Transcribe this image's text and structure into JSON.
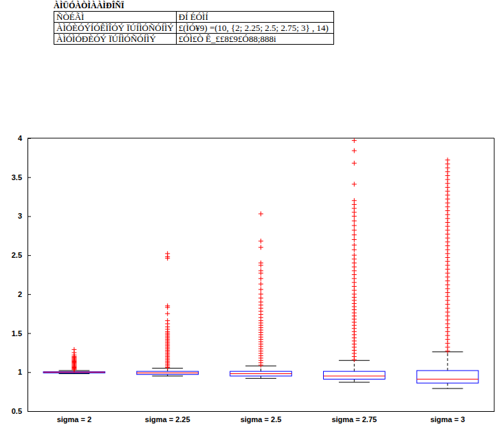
{
  "header_table": {
    "title": "ÀÌÜÓÀÒÌÀÀÌÐÎÑÏ",
    "rows": [
      [
        "ÑÒÉÃÌ",
        "ÐÍ ÉÓÌÍ"
      ],
      [
        "ÀÌÓÈÓÝÍÓÊÌÎÓÝ ÏÚÍÌÓÑÓÍÌÝ",
        "£(ÌÓ¥9) =(10, {2; 2.25; 2.5; 2.75; 3} , 14)"
      ],
      [
        "ÀÌÓÌÓÐÈÓÝ ÏÚÍÌÓÑÓÍÌÝ",
        "£ÓÌ£Ò Ê_££8£9£Ó88;888i"
      ]
    ]
  },
  "chart_data": {
    "type": "box",
    "categories": [
      "sigma = 2",
      "sigma = 2.25",
      "sigma = 2.5",
      "sigma = 2.75",
      "sigma = 3"
    ],
    "ylim": [
      0.5,
      4
    ],
    "yticks": [
      0.5,
      1,
      1.5,
      2,
      2.5,
      3,
      3.5,
      4
    ],
    "color": "#0000ff",
    "median_color": "#ff0000",
    "outlier_color": "#ff0000",
    "marker": "plus",
    "boxes": [
      {
        "whisker_low": 0.98,
        "q1": 0.99,
        "median": 1.0,
        "q3": 1.005,
        "whisker_high": 1.02,
        "outliers": [
          1.03,
          1.04,
          1.05,
          1.06,
          1.07,
          1.08,
          1.09,
          1.1,
          1.11,
          1.12,
          1.13,
          1.14,
          1.15,
          1.16,
          1.17,
          1.18,
          1.19,
          1.2,
          1.22,
          1.25,
          1.29
        ]
      },
      {
        "whisker_low": 0.95,
        "q1": 0.97,
        "median": 0.99,
        "q3": 1.01,
        "whisker_high": 1.05,
        "outliers": [
          1.06,
          1.08,
          1.1,
          1.12,
          1.14,
          1.16,
          1.18,
          1.2,
          1.22,
          1.24,
          1.26,
          1.28,
          1.3,
          1.32,
          1.34,
          1.36,
          1.38,
          1.4,
          1.42,
          1.44,
          1.46,
          1.48,
          1.5,
          1.52,
          1.55,
          1.58,
          1.62,
          1.66,
          1.75,
          1.83,
          1.85,
          2.46,
          2.48,
          2.52
        ]
      },
      {
        "whisker_low": 0.92,
        "q1": 0.95,
        "median": 0.98,
        "q3": 1.01,
        "whisker_high": 1.08,
        "outliers": [
          1.09,
          1.12,
          1.15,
          1.18,
          1.21,
          1.24,
          1.27,
          1.3,
          1.33,
          1.36,
          1.39,
          1.42,
          1.45,
          1.48,
          1.51,
          1.54,
          1.57,
          1.6,
          1.63,
          1.66,
          1.7,
          1.74,
          1.78,
          1.82,
          1.86,
          1.9,
          1.95,
          2.0,
          2.06,
          2.13,
          2.2,
          2.27,
          2.3,
          2.37,
          2.4,
          2.6,
          2.68,
          3.03
        ]
      },
      {
        "whisker_low": 0.87,
        "q1": 0.91,
        "median": 0.95,
        "q3": 1.01,
        "whisker_high": 1.15,
        "outliers": [
          1.16,
          1.2,
          1.24,
          1.28,
          1.32,
          1.36,
          1.4,
          1.44,
          1.48,
          1.52,
          1.56,
          1.6,
          1.64,
          1.68,
          1.72,
          1.76,
          1.8,
          1.84,
          1.88,
          1.92,
          1.96,
          2.0,
          2.05,
          2.1,
          2.15,
          2.2,
          2.25,
          2.3,
          2.35,
          2.4,
          2.45,
          2.5,
          2.57,
          2.63,
          2.7,
          2.76,
          2.82,
          2.88,
          2.94,
          3.0,
          3.05,
          3.1,
          3.15,
          3.2,
          3.41,
          3.68,
          3.84,
          3.97
        ]
      },
      {
        "whisker_low": 0.79,
        "q1": 0.86,
        "median": 0.91,
        "q3": 1.02,
        "whisker_high": 1.26,
        "outliers": [
          1.27,
          1.32,
          1.37,
          1.42,
          1.47,
          1.52,
          1.57,
          1.62,
          1.67,
          1.72,
          1.77,
          1.82,
          1.87,
          1.92,
          1.97,
          2.02,
          2.07,
          2.12,
          2.17,
          2.22,
          2.27,
          2.32,
          2.37,
          2.42,
          2.47,
          2.52,
          2.57,
          2.62,
          2.67,
          2.72,
          2.77,
          2.82,
          2.87,
          2.92,
          2.97,
          3.02,
          3.07,
          3.12,
          3.17,
          3.22,
          3.27,
          3.32,
          3.37,
          3.42,
          3.47,
          3.52,
          3.57,
          3.62,
          3.67,
          3.72
        ]
      }
    ]
  }
}
